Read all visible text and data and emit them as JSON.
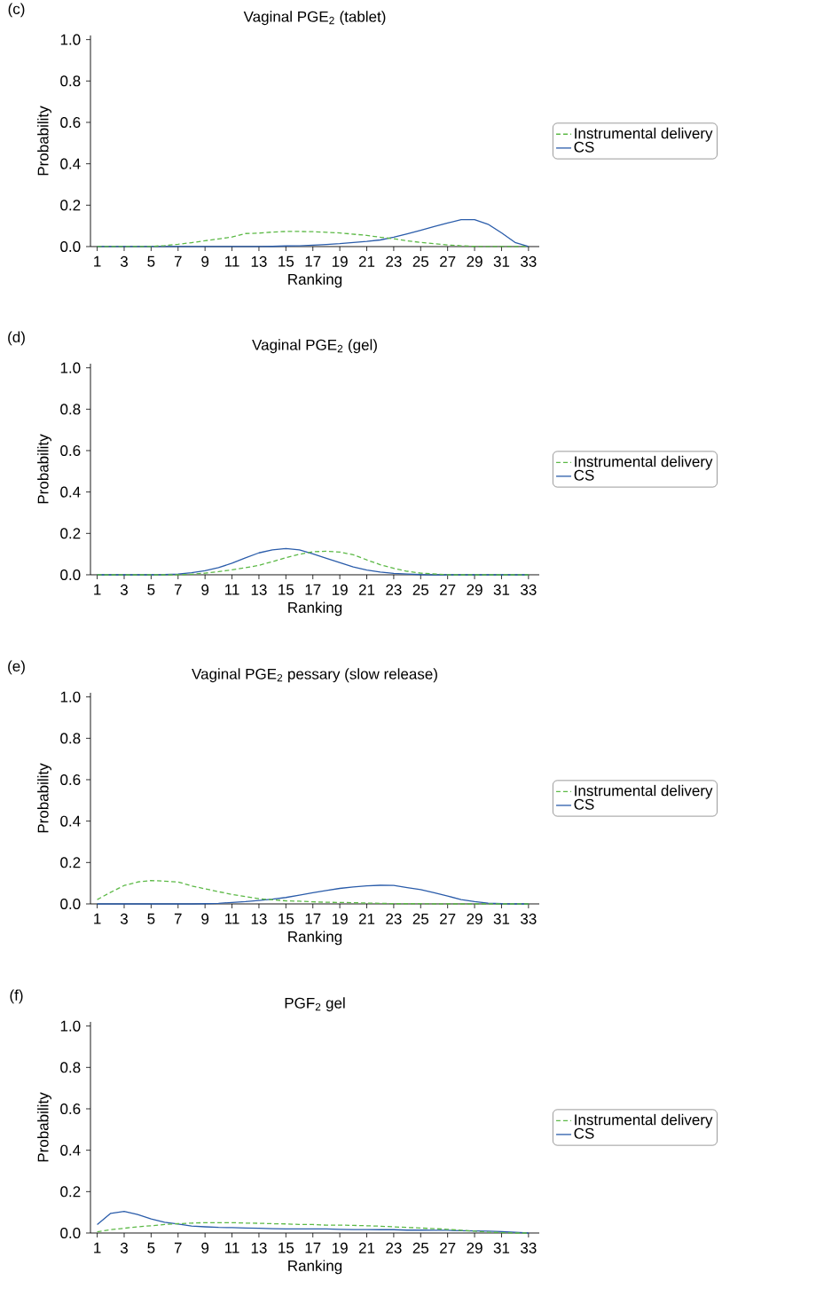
{
  "chart_data": [
    {
      "type": "line",
      "title": "Vaginal PGE$_{2}$ (tablet)",
      "annotations": [
        "(c)"
      ],
      "xlabel": "Ranking",
      "ylabel": "Probability",
      "legend": "right",
      "x": [
        1,
        2,
        3,
        4,
        5,
        6,
        7,
        8,
        9,
        10,
        11,
        12,
        13,
        14,
        15,
        16,
        17,
        18,
        19,
        20,
        21,
        22,
        23,
        24,
        25,
        26,
        27,
        28,
        29,
        30,
        31,
        32,
        33
      ],
      "xlim": [
        0.5,
        33.8
      ],
      "ylim": [
        0,
        1.02
      ],
      "xticks": [
        1,
        3,
        5,
        7,
        9,
        11,
        13,
        15,
        17,
        19,
        21,
        23,
        25,
        27,
        29,
        31,
        33
      ],
      "yticks": [
        {
          "value": 0,
          "label": "0.0"
        },
        {
          "value": 0.2,
          "label": "0.2"
        },
        {
          "value": 0.4,
          "label": "0.4"
        },
        {
          "value": 0.6,
          "label": "0.6"
        },
        {
          "value": 0.8,
          "label": "0.8"
        },
        {
          "value": 1,
          "label": "1.0"
        }
      ],
      "series": [
        {
          "name": "Instrumental delivery",
          "color": "#5cb946",
          "line_style": "dashed",
          "values": [
            0,
            0,
            0,
            0,
            0.001,
            0.005,
            0.011,
            0.019,
            0.028,
            0.037,
            0.046,
            0.063,
            0.065,
            0.07,
            0.073,
            0.073,
            0.072,
            0.069,
            0.066,
            0.06,
            0.054,
            0.045,
            0.038,
            0.028,
            0.02,
            0.014,
            0.008,
            0.004,
            0.001,
            0,
            0,
            0,
            0
          ]
        },
        {
          "name": "CS",
          "color": "#2a5caa",
          "line_style": "solid",
          "values": [
            0,
            0,
            0,
            0,
            0,
            0,
            0,
            0,
            0,
            0,
            0,
            0,
            0,
            0.001,
            0.003,
            0.004,
            0.007,
            0.01,
            0.014,
            0.02,
            0.025,
            0.032,
            0.045,
            0.062,
            0.079,
            0.097,
            0.114,
            0.13,
            0.13,
            0.108,
            0.066,
            0.02,
            0
          ]
        }
      ]
    },
    {
      "type": "line",
      "title": "Vaginal PGE$_{2}$ (gel)",
      "annotations": [
        "(d)"
      ],
      "xlabel": "Ranking",
      "ylabel": "Probability",
      "legend": "right",
      "x": [
        1,
        2,
        3,
        4,
        5,
        6,
        7,
        8,
        9,
        10,
        11,
        12,
        13,
        14,
        15,
        16,
        17,
        18,
        19,
        20,
        21,
        22,
        23,
        24,
        25,
        26,
        27,
        28,
        29,
        30,
        31,
        32,
        33
      ],
      "xlim": [
        0.5,
        33.8
      ],
      "ylim": [
        0,
        1.02
      ],
      "xticks": [
        1,
        3,
        5,
        7,
        9,
        11,
        13,
        15,
        17,
        19,
        21,
        23,
        25,
        27,
        29,
        31,
        33
      ],
      "yticks": [
        {
          "value": 0,
          "label": "0.0"
        },
        {
          "value": 0.2,
          "label": "0.2"
        },
        {
          "value": 0.4,
          "label": "0.4"
        },
        {
          "value": 0.6,
          "label": "0.6"
        },
        {
          "value": 0.8,
          "label": "0.8"
        },
        {
          "value": 1,
          "label": "1.0"
        }
      ],
      "series": [
        {
          "name": "Instrumental delivery",
          "color": "#5cb946",
          "line_style": "dashed",
          "values": [
            0,
            0,
            0,
            0,
            0,
            0,
            0,
            0.003,
            0.008,
            0.015,
            0.024,
            0.034,
            0.046,
            0.063,
            0.083,
            0.099,
            0.111,
            0.114,
            0.11,
            0.097,
            0.072,
            0.049,
            0.031,
            0.017,
            0.008,
            0.004,
            0,
            0,
            0,
            0,
            0,
            0,
            0
          ]
        },
        {
          "name": "CS",
          "color": "#2a5caa",
          "line_style": "solid",
          "values": [
            0,
            0,
            0,
            0,
            0,
            0.001,
            0.004,
            0.01,
            0.02,
            0.035,
            0.056,
            0.082,
            0.106,
            0.12,
            0.127,
            0.12,
            0.101,
            0.08,
            0.059,
            0.038,
            0.023,
            0.013,
            0.007,
            0.004,
            0.001,
            0,
            0,
            0,
            0,
            0,
            0,
            0,
            0
          ]
        }
      ]
    },
    {
      "type": "line",
      "title": "Vaginal PGE$_{2}$ pessary (slow release)",
      "annotations": [
        "(e)"
      ],
      "xlabel": "Ranking",
      "ylabel": "Probability",
      "legend": "right",
      "x": [
        1,
        2,
        3,
        4,
        5,
        6,
        7,
        8,
        9,
        10,
        11,
        12,
        13,
        14,
        15,
        16,
        17,
        18,
        19,
        20,
        21,
        22,
        23,
        24,
        25,
        26,
        27,
        28,
        29,
        30,
        31,
        32,
        33
      ],
      "xlim": [
        0.5,
        33.8
      ],
      "ylim": [
        0,
        1.02
      ],
      "xticks": [
        1,
        3,
        5,
        7,
        9,
        11,
        13,
        15,
        17,
        19,
        21,
        23,
        25,
        27,
        29,
        31,
        33
      ],
      "yticks": [
        {
          "value": 0,
          "label": "0.0"
        },
        {
          "value": 0.2,
          "label": "0.2"
        },
        {
          "value": 0.4,
          "label": "0.4"
        },
        {
          "value": 0.6,
          "label": "0.6"
        },
        {
          "value": 0.8,
          "label": "0.8"
        },
        {
          "value": 1,
          "label": "1.0"
        }
      ],
      "series": [
        {
          "name": "Instrumental delivery",
          "color": "#5cb946",
          "line_style": "dashed",
          "values": [
            0.021,
            0.056,
            0.089,
            0.106,
            0.113,
            0.11,
            0.106,
            0.087,
            0.073,
            0.059,
            0.046,
            0.035,
            0.025,
            0.02,
            0.015,
            0.013,
            0.01,
            0.008,
            0.007,
            0.006,
            0.004,
            0.003,
            0.001,
            0.001,
            0.001,
            0,
            0,
            0,
            0,
            0,
            0,
            0,
            0
          ]
        },
        {
          "name": "CS",
          "color": "#2a5caa",
          "line_style": "solid",
          "values": [
            0,
            0,
            0,
            0,
            0,
            0,
            0,
            0,
            0.001,
            0.003,
            0.007,
            0.011,
            0.017,
            0.023,
            0.031,
            0.042,
            0.054,
            0.065,
            0.075,
            0.082,
            0.087,
            0.09,
            0.089,
            0.079,
            0.069,
            0.054,
            0.038,
            0.021,
            0.011,
            0.004,
            0.001,
            0,
            0
          ]
        }
      ]
    },
    {
      "type": "line",
      "title": "PGF$_{2}$ gel",
      "annotations": [
        "(f)"
      ],
      "xlabel": "Ranking",
      "ylabel": "Probability",
      "legend": "right",
      "x": [
        1,
        2,
        3,
        4,
        5,
        6,
        7,
        8,
        9,
        10,
        11,
        12,
        13,
        14,
        15,
        16,
        17,
        18,
        19,
        20,
        21,
        22,
        23,
        24,
        25,
        26,
        27,
        28,
        29,
        30,
        31,
        32,
        33
      ],
      "xlim": [
        0.5,
        33.8
      ],
      "ylim": [
        0,
        1.02
      ],
      "xticks": [
        1,
        3,
        5,
        7,
        9,
        11,
        13,
        15,
        17,
        19,
        21,
        23,
        25,
        27,
        29,
        31,
        33
      ],
      "yticks": [
        {
          "value": 0,
          "label": "0.0"
        },
        {
          "value": 0.2,
          "label": "0.2"
        },
        {
          "value": 0.4,
          "label": "0.4"
        },
        {
          "value": 0.6,
          "label": "0.6"
        },
        {
          "value": 0.8,
          "label": "0.8"
        },
        {
          "value": 1,
          "label": "1.0"
        }
      ],
      "series": [
        {
          "name": "Instrumental delivery",
          "color": "#5cb946",
          "line_style": "dashed",
          "values": [
            0.006,
            0.016,
            0.023,
            0.03,
            0.035,
            0.041,
            0.045,
            0.048,
            0.05,
            0.05,
            0.05,
            0.048,
            0.047,
            0.045,
            0.044,
            0.041,
            0.041,
            0.038,
            0.038,
            0.037,
            0.035,
            0.033,
            0.03,
            0.027,
            0.024,
            0.021,
            0.018,
            0.013,
            0.009,
            0.004,
            0.002,
            0,
            0
          ]
        },
        {
          "name": "CS",
          "color": "#2a5caa",
          "line_style": "solid",
          "values": [
            0.041,
            0.095,
            0.104,
            0.089,
            0.068,
            0.052,
            0.043,
            0.034,
            0.03,
            0.027,
            0.026,
            0.024,
            0.023,
            0.021,
            0.02,
            0.02,
            0.02,
            0.02,
            0.018,
            0.017,
            0.017,
            0.016,
            0.016,
            0.014,
            0.014,
            0.013,
            0.013,
            0.011,
            0.01,
            0.009,
            0.007,
            0.004,
            0
          ]
        }
      ]
    }
  ]
}
